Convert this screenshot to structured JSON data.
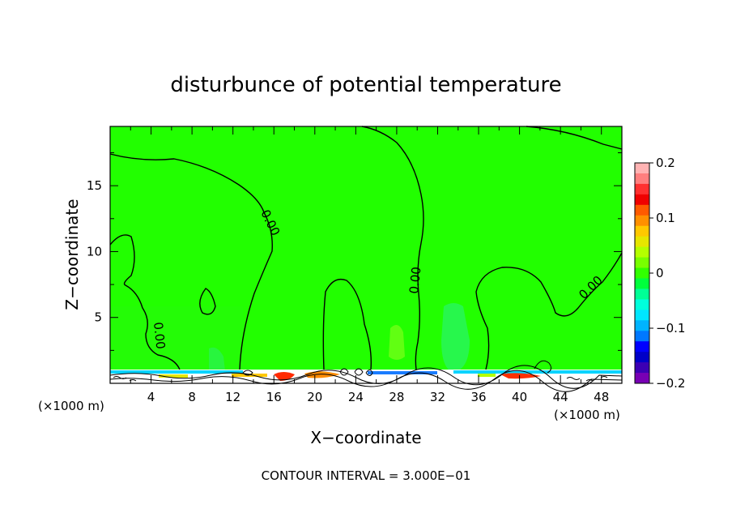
{
  "chart_data": {
    "type": "contour",
    "title": "disturbunce of potential temperature",
    "xlabel": "X−coordinate",
    "ylabel": "Z−coordinate",
    "x_unit_left": "(×1000 m)",
    "x_unit_right": "(×1000 m)",
    "footer": "CONTOUR INTERVAL = 3.000E−01",
    "xlim": [
      0,
      50
    ],
    "ylim": [
      0,
      19.5
    ],
    "x_ticks": [
      4,
      8,
      12,
      16,
      20,
      24,
      28,
      32,
      36,
      40,
      44,
      48
    ],
    "y_ticks": [
      5,
      10,
      15
    ],
    "contour_level_labels": [
      "0.00",
      "0.00",
      "0.00",
      "0.00"
    ],
    "colorbar": {
      "range": [
        -0.2,
        0.2
      ],
      "ticks": [
        "0.2",
        "0.1",
        "0",
        "−0.1",
        "−0.2"
      ],
      "tick_values": [
        0.2,
        0.1,
        0,
        -0.1,
        -0.2
      ],
      "colors": [
        "#ffb3b3",
        "#ff7f7f",
        "#ff3030",
        "#f00000",
        "#ff5a00",
        "#ff9000",
        "#ffc800",
        "#e6e600",
        "#b4ff00",
        "#78ff00",
        "#32ff00",
        "#00ff3c",
        "#00ff96",
        "#00ffdc",
        "#00e6ff",
        "#00b4ff",
        "#0078ff",
        "#0000ff",
        "#0000c8",
        "#3c00b4",
        "#7800b4"
      ]
    },
    "background_field_color": "#22ff00"
  }
}
